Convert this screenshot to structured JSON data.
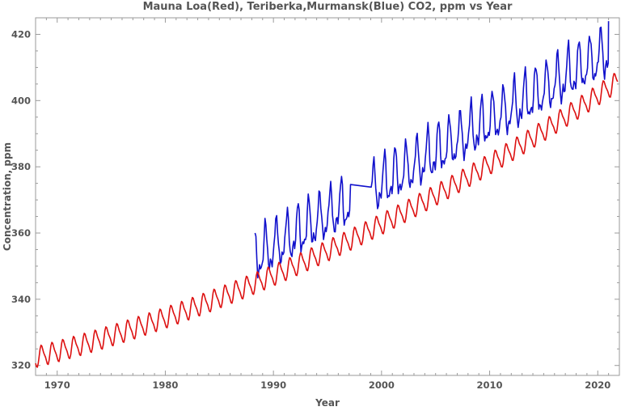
{
  "chart_data": {
    "type": "line",
    "title": "Mauna Loa(Red), Teriberka,Murmansk(Blue) CO2, ppm vs Year",
    "xlabel": "Year",
    "ylabel": "Concentration, ppm",
    "xlim": [
      1968,
      2022
    ],
    "ylim": [
      317,
      425
    ],
    "x_ticks": [
      1970,
      1980,
      1990,
      2000,
      2010,
      2020
    ],
    "y_ticks": [
      320,
      340,
      360,
      380,
      400,
      420
    ],
    "grid": false,
    "legend": "none (colors described in title)",
    "series": [
      {
        "name": "Mauna Loa",
        "color": "#dd1111",
        "sampling": "monthly seasonal cycle approximating a quadratic trend",
        "start_year": 1968.0,
        "end_year": 2021.9,
        "trend": {
          "base_year": 1968,
          "base_ppm": 322.5,
          "linear_ppm_per_year": 0.83,
          "quadratic_ppm_per_year2": 0.0133
        },
        "seasonal_amplitude": 3.2
      },
      {
        "name": "Teriberka, Murmansk",
        "color": "#1111cc",
        "sampling": "monthly seasonal cycle approximating a linear trend",
        "start_year": 1988.3,
        "end_year": 2021.0,
        "gap": [
          1997.2,
          1999.0
        ],
        "trend": {
          "base_year": 1988.3,
          "base_ppm": 352.5,
          "linear_ppm_per_year": 1.9
        },
        "seasonal_amplitude": 7.5,
        "first_value": 360,
        "last_value": 424
      }
    ]
  }
}
